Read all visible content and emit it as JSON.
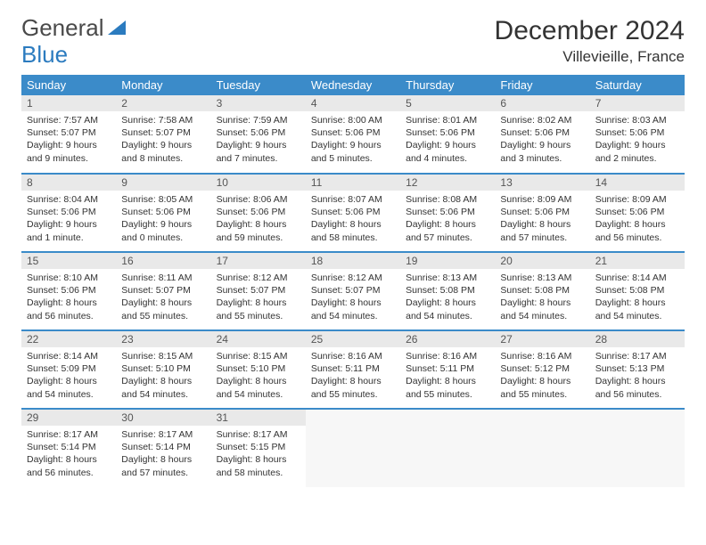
{
  "brand": {
    "part1": "General",
    "part2": "Blue"
  },
  "colors": {
    "header_bg": "#3b8bc9",
    "header_text": "#ffffff",
    "daynum_bg": "#e9e9e9",
    "border": "#3b8bc9",
    "text": "#333333",
    "logo_gray": "#4a4a4a",
    "logo_blue": "#2b7bbf"
  },
  "title": "December 2024",
  "location": "Villevieille, France",
  "weekdays": [
    "Sunday",
    "Monday",
    "Tuesday",
    "Wednesday",
    "Thursday",
    "Friday",
    "Saturday"
  ],
  "days": [
    {
      "n": "1",
      "sr": "7:57 AM",
      "ss": "5:07 PM",
      "dl": "9 hours and 9 minutes."
    },
    {
      "n": "2",
      "sr": "7:58 AM",
      "ss": "5:07 PM",
      "dl": "9 hours and 8 minutes."
    },
    {
      "n": "3",
      "sr": "7:59 AM",
      "ss": "5:06 PM",
      "dl": "9 hours and 7 minutes."
    },
    {
      "n": "4",
      "sr": "8:00 AM",
      "ss": "5:06 PM",
      "dl": "9 hours and 5 minutes."
    },
    {
      "n": "5",
      "sr": "8:01 AM",
      "ss": "5:06 PM",
      "dl": "9 hours and 4 minutes."
    },
    {
      "n": "6",
      "sr": "8:02 AM",
      "ss": "5:06 PM",
      "dl": "9 hours and 3 minutes."
    },
    {
      "n": "7",
      "sr": "8:03 AM",
      "ss": "5:06 PM",
      "dl": "9 hours and 2 minutes."
    },
    {
      "n": "8",
      "sr": "8:04 AM",
      "ss": "5:06 PM",
      "dl": "9 hours and 1 minute."
    },
    {
      "n": "9",
      "sr": "8:05 AM",
      "ss": "5:06 PM",
      "dl": "9 hours and 0 minutes."
    },
    {
      "n": "10",
      "sr": "8:06 AM",
      "ss": "5:06 PM",
      "dl": "8 hours and 59 minutes."
    },
    {
      "n": "11",
      "sr": "8:07 AM",
      "ss": "5:06 PM",
      "dl": "8 hours and 58 minutes."
    },
    {
      "n": "12",
      "sr": "8:08 AM",
      "ss": "5:06 PM",
      "dl": "8 hours and 57 minutes."
    },
    {
      "n": "13",
      "sr": "8:09 AM",
      "ss": "5:06 PM",
      "dl": "8 hours and 57 minutes."
    },
    {
      "n": "14",
      "sr": "8:09 AM",
      "ss": "5:06 PM",
      "dl": "8 hours and 56 minutes."
    },
    {
      "n": "15",
      "sr": "8:10 AM",
      "ss": "5:06 PM",
      "dl": "8 hours and 56 minutes."
    },
    {
      "n": "16",
      "sr": "8:11 AM",
      "ss": "5:07 PM",
      "dl": "8 hours and 55 minutes."
    },
    {
      "n": "17",
      "sr": "8:12 AM",
      "ss": "5:07 PM",
      "dl": "8 hours and 55 minutes."
    },
    {
      "n": "18",
      "sr": "8:12 AM",
      "ss": "5:07 PM",
      "dl": "8 hours and 54 minutes."
    },
    {
      "n": "19",
      "sr": "8:13 AM",
      "ss": "5:08 PM",
      "dl": "8 hours and 54 minutes."
    },
    {
      "n": "20",
      "sr": "8:13 AM",
      "ss": "5:08 PM",
      "dl": "8 hours and 54 minutes."
    },
    {
      "n": "21",
      "sr": "8:14 AM",
      "ss": "5:08 PM",
      "dl": "8 hours and 54 minutes."
    },
    {
      "n": "22",
      "sr": "8:14 AM",
      "ss": "5:09 PM",
      "dl": "8 hours and 54 minutes."
    },
    {
      "n": "23",
      "sr": "8:15 AM",
      "ss": "5:10 PM",
      "dl": "8 hours and 54 minutes."
    },
    {
      "n": "24",
      "sr": "8:15 AM",
      "ss": "5:10 PM",
      "dl": "8 hours and 54 minutes."
    },
    {
      "n": "25",
      "sr": "8:16 AM",
      "ss": "5:11 PM",
      "dl": "8 hours and 55 minutes."
    },
    {
      "n": "26",
      "sr": "8:16 AM",
      "ss": "5:11 PM",
      "dl": "8 hours and 55 minutes."
    },
    {
      "n": "27",
      "sr": "8:16 AM",
      "ss": "5:12 PM",
      "dl": "8 hours and 55 minutes."
    },
    {
      "n": "28",
      "sr": "8:17 AM",
      "ss": "5:13 PM",
      "dl": "8 hours and 56 minutes."
    },
    {
      "n": "29",
      "sr": "8:17 AM",
      "ss": "5:14 PM",
      "dl": "8 hours and 56 minutes."
    },
    {
      "n": "30",
      "sr": "8:17 AM",
      "ss": "5:14 PM",
      "dl": "8 hours and 57 minutes."
    },
    {
      "n": "31",
      "sr": "8:17 AM",
      "ss": "5:15 PM",
      "dl": "8 hours and 58 minutes."
    }
  ],
  "labels": {
    "sunrise": "Sunrise:",
    "sunset": "Sunset:",
    "daylight": "Daylight:"
  },
  "layout": {
    "cols": 7,
    "rows": 5,
    "start_offset": 0,
    "trailing_empty": 4
  }
}
